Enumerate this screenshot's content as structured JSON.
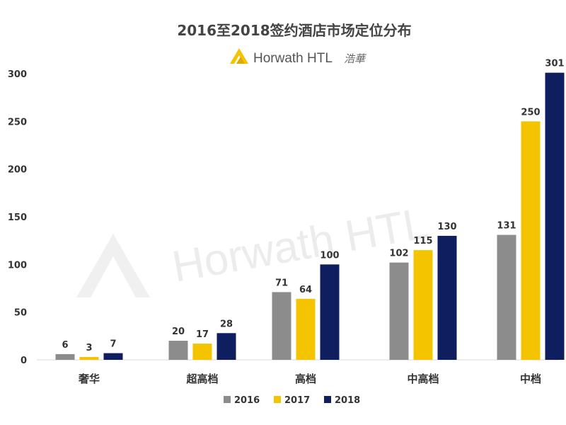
{
  "brand": {
    "name": "Horwath HTL",
    "name_cn": "浩華",
    "logo_icon": "horwath-mountain-logo-icon",
    "logo_color": "#F5C400",
    "watermark_text": "Horwath HTL"
  },
  "chart_data": {
    "type": "bar",
    "title": "2016至2018签约酒店市场定位分布",
    "xlabel": "",
    "ylabel": "",
    "categories": [
      "奢华",
      "超高档",
      "高档",
      "中高档",
      "中档"
    ],
    "series": [
      {
        "name": "2016",
        "color": "#8C8C8C",
        "values": [
          6,
          20,
          71,
          102,
          131
        ]
      },
      {
        "name": "2017",
        "color": "#F5C400",
        "values": [
          3,
          17,
          64,
          115,
          250
        ]
      },
      {
        "name": "2018",
        "color": "#0E1E5E",
        "values": [
          7,
          28,
          100,
          130,
          301
        ]
      }
    ],
    "ylim": [
      0,
      300
    ],
    "yticks": [
      0,
      50,
      100,
      150,
      200,
      250,
      300
    ],
    "grid": false,
    "legend": "bottom-center",
    "data_labels": true
  }
}
